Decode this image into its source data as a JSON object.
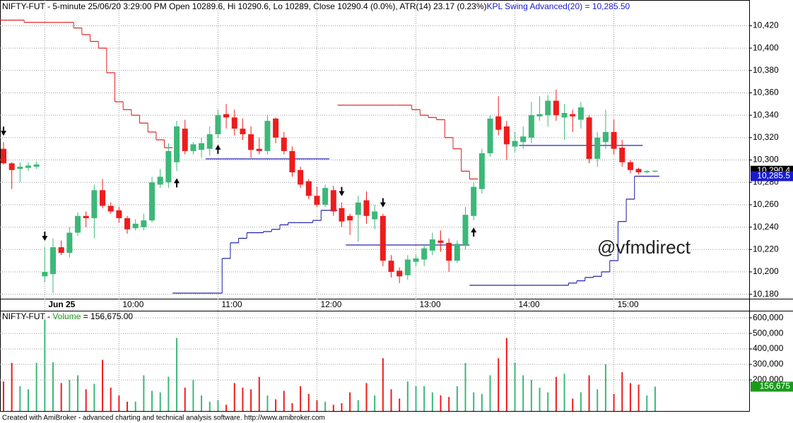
{
  "chart_data": [
    {
      "type": "candlestick",
      "title": "NIFTY-FUT - 5-minute 25/06/20 3:29:00 PM Open 10289.6, Hi 10290.6, Lo 10289, Close 10290.4 (0.0%), ATR(14) 23.17  (0.23%)",
      "subtitle": "KPL Swing Advanced(20) = 10,285.50",
      "categories": [
        null,
        null,
        null,
        null,
        null,
        "Jun 25",
        null,
        null,
        null,
        null,
        null,
        null,
        null,
        null,
        "10:00",
        null,
        null,
        null,
        null,
        null,
        null,
        null,
        null,
        null,
        null,
        null,
        "11:00",
        null,
        null,
        null,
        null,
        null,
        null,
        null,
        null,
        null,
        null,
        null,
        "12:00",
        null,
        null,
        null,
        null,
        null,
        null,
        null,
        null,
        null,
        null,
        null,
        "13:00",
        null,
        null,
        null,
        null,
        null,
        null,
        null,
        null,
        null,
        null,
        null,
        "14:00",
        null,
        null,
        null,
        null,
        null,
        null,
        null,
        null,
        null,
        null,
        null,
        "15:00",
        null,
        null,
        null,
        null,
        null
      ],
      "open": [
        10310,
        10297,
        10292,
        10293,
        10294,
        10196,
        10198,
        10222,
        10217,
        10235,
        10250,
        10248,
        10273,
        10259,
        10255,
        10248,
        10239,
        10240,
        10246,
        10278,
        10280,
        10298,
        10328,
        10308,
        10309,
        10310,
        10323,
        10341,
        10338,
        10328,
        10323,
        10310,
        10308,
        10337,
        10320,
        10308,
        10291,
        10281,
        10268,
        10260,
        10273,
        10257,
        10250,
        10251,
        10264,
        10247,
        10250,
        10210,
        10201,
        10197,
        10209,
        10211,
        10219,
        10228,
        10226,
        10210,
        10224,
        10250,
        10274,
        10306,
        10339,
        10330,
        10312,
        10316,
        10320,
        10339,
        10340,
        10353,
        10338,
        10341,
        10336,
        10338,
        10301,
        10316,
        10325,
        10311,
        10298,
        10292,
        10289,
        10289.6
      ],
      "high": [
        10316,
        10298,
        10298,
        10298,
        10299,
        10222,
        10230,
        10228,
        10240,
        10253,
        10254,
        10278,
        10283,
        10262,
        10258,
        10250,
        10247,
        10252,
        10285,
        10292,
        10315,
        10335,
        10336,
        10316,
        10320,
        10330,
        10345,
        10350,
        10345,
        10337,
        10330,
        10320,
        10340,
        10338,
        10325,
        10312,
        10294,
        10283,
        10276,
        10278,
        10277,
        10262,
        10252,
        10268,
        10272,
        10260,
        10252,
        10215,
        10204,
        10215,
        10215,
        10225,
        10235,
        10237,
        10230,
        10228,
        10258,
        10280,
        10310,
        10340,
        10357,
        10335,
        10325,
        10330,
        10352,
        10357,
        10358,
        10363,
        10350,
        10345,
        10352,
        10340,
        10325,
        10345,
        10336,
        10318,
        10300,
        10293,
        10291,
        10290.6
      ],
      "low": [
        10296,
        10274,
        10280,
        10290,
        10292,
        10191,
        10181,
        10215,
        10213,
        10232,
        10240,
        10230,
        10257,
        10252,
        10244,
        10234,
        10237,
        10237,
        10244,
        10275,
        10275,
        10290,
        10305,
        10305,
        10302,
        10304,
        10320,
        10328,
        10322,
        10318,
        10302,
        10305,
        10305,
        10315,
        10305,
        10285,
        10275,
        10265,
        10258,
        10258,
        10250,
        10240,
        10233,
        10227,
        10243,
        10238,
        10205,
        10195,
        10190,
        10193,
        10205,
        10205,
        10215,
        10218,
        10200,
        10208,
        10220,
        10246,
        10270,
        10303,
        10322,
        10300,
        10307,
        10310,
        10315,
        10335,
        10330,
        10335,
        10318,
        10325,
        10328,
        10297,
        10294,
        10310,
        10305,
        10294,
        10288,
        10287,
        10288,
        10289
      ],
      "close": [
        10297,
        10291,
        10294,
        10295,
        10296,
        10200,
        10222,
        10217,
        10235,
        10250,
        10248,
        10273,
        10259,
        10254,
        10248,
        10238,
        10243,
        10246,
        10280,
        10285,
        10308,
        10330,
        10308,
        10314,
        10315,
        10323,
        10340,
        10338,
        10328,
        10323,
        10309,
        10308,
        10335,
        10320,
        10308,
        10289,
        10278,
        10268,
        10260,
        10275,
        10254,
        10245,
        10246,
        10262,
        10250,
        10254,
        10210,
        10200,
        10196,
        10211,
        10212,
        10221,
        10229,
        10226,
        10210,
        10225,
        10251,
        10276,
        10306,
        10337,
        10327,
        10314,
        10317,
        10321,
        10340,
        10341,
        10353,
        10340,
        10342,
        10339,
        10347,
        10301,
        10320,
        10325,
        10310,
        10298,
        10291,
        10289,
        10290,
        10290.4
      ],
      "up_color": "#3cb878",
      "down_color": "#ee1c1c",
      "swing_upper": {
        "color": "#dd2020",
        "values": [
          10425,
          10425,
          10425,
          10423,
          10423,
          10423,
          10423,
          10423,
          10423,
          10418,
          10412,
          10406,
          10400,
          10378,
          10352,
          10345,
          10340,
          10333,
          10325,
          10318,
          10311,
          null,
          null,
          null,
          null,
          null,
          null,
          null,
          null,
          null,
          null,
          null,
          null,
          null,
          null,
          null,
          null,
          null,
          null,
          null,
          null,
          10349,
          10349,
          10349,
          10349,
          10349,
          10349,
          10349,
          10349,
          10349,
          10345,
          10340,
          10338,
          10336,
          10320,
          10310,
          10290,
          10283,
          null,
          null,
          null,
          null,
          null,
          null,
          null,
          null,
          null,
          null,
          null,
          null,
          null,
          null,
          null,
          null,
          null,
          null,
          null,
          null,
          null,
          null
        ]
      },
      "swing_lower": {
        "color": "#1a1aa6",
        "values": [
          null,
          null,
          null,
          null,
          null,
          null,
          null,
          null,
          null,
          null,
          null,
          null,
          null,
          null,
          null,
          null,
          null,
          null,
          null,
          null,
          null,
          10181,
          10181,
          10181,
          10181,
          10181,
          10181,
          10212,
          10226,
          10230,
          10235,
          10235,
          10236,
          10238,
          10242,
          10244,
          10244,
          10244,
          10246,
          10255,
          10255,
          null,
          null,
          null,
          null,
          null,
          null,
          null,
          null,
          null,
          null,
          null,
          null,
          null,
          null,
          null,
          null,
          10188,
          10188,
          10188,
          10188,
          10188,
          10188,
          10188,
          10188,
          10188,
          10188,
          10188,
          10188,
          10190,
          10192,
          10195,
          10196,
          10200,
          10210,
          10245,
          10265,
          10285.5,
          10285.5,
          10285.5
        ]
      },
      "swing_levels": {
        "color": "#1a1aa6",
        "values": [
          null,
          null,
          null,
          null,
          null,
          null,
          null,
          null,
          null,
          null,
          null,
          null,
          null,
          null,
          null,
          null,
          null,
          null,
          null,
          null,
          null,
          null,
          null,
          null,
          null,
          10301,
          10301,
          10301,
          10301,
          10301,
          10301,
          10301,
          10301,
          10301,
          10301,
          10301,
          10301,
          10301,
          10301,
          10301,
          null,
          null,
          10224,
          10224,
          10224,
          10224,
          10224,
          10224,
          10224,
          10224,
          10224,
          10224,
          10224,
          10224,
          10224,
          10224,
          10224,
          null,
          null,
          null,
          null,
          null,
          null,
          10313,
          10313,
          10313,
          10313,
          10313,
          10313,
          10313,
          10313,
          10313,
          10313,
          10313,
          10313,
          10313,
          10313,
          10313,
          null,
          null
        ]
      },
      "buy_signals": [
        21,
        26,
        57
      ],
      "sell_signals": [
        0,
        5,
        41,
        46
      ],
      "price_badge": {
        "value": 10290.4,
        "label": "10,290.4"
      },
      "swing_badge": {
        "value": 10285.5,
        "label": "10,285.5"
      },
      "ylim": [
        10176,
        10443
      ],
      "yticks": [
        {
          "value": 10180,
          "label": "10,180"
        },
        {
          "value": 10200,
          "label": "10,200"
        },
        {
          "value": 10220,
          "label": "10,220"
        },
        {
          "value": 10240,
          "label": "10,240"
        },
        {
          "value": 10260,
          "label": "10,260"
        },
        {
          "value": 10280,
          "label": "10,280"
        },
        {
          "value": 10300,
          "label": "10,300"
        },
        {
          "value": 10320,
          "label": "10,320"
        },
        {
          "value": 10340,
          "label": "10,340"
        },
        {
          "value": 10360,
          "label": "10,360"
        },
        {
          "value": 10380,
          "label": "10,380"
        },
        {
          "value": 10400,
          "label": "10,400"
        },
        {
          "value": 10420,
          "label": "10,420"
        }
      ],
      "grid": true
    },
    {
      "type": "bar",
      "title": "NIFTY-FUT - ",
      "series": [
        {
          "name": "Volume",
          "color": "#1a9c1a",
          "values": [
            190000,
            310000,
            160000,
            140000,
            310000,
            590000,
            315000,
            180000,
            200000,
            230000,
            140000,
            175000,
            330000,
            150000,
            100000,
            60000,
            60000,
            230000,
            130000,
            120000,
            220000,
            470000,
            150000,
            200000,
            100000,
            60000,
            70000,
            40000,
            180000,
            150000,
            140000,
            220000,
            100000,
            75000,
            130000,
            50000,
            160000,
            110000,
            70000,
            60000,
            40000,
            50000,
            120000,
            70000,
            180000,
            100000,
            340000,
            140000,
            80000,
            190000,
            160000,
            160000,
            120000,
            100000,
            90000,
            160000,
            310000,
            120000,
            110000,
            230000,
            340000,
            470000,
            310000,
            230000,
            200000,
            150000,
            120000,
            220000,
            240000,
            80000,
            120000,
            230000,
            140000,
            300000,
            110000,
            250000,
            180000,
            170000,
            100000,
            156675
          ]
        }
      ],
      "value_text": " = 156,675.00",
      "badge": {
        "value": 156675,
        "label": "156,675"
      },
      "ylim": [
        0,
        646000
      ],
      "yticks": [
        {
          "value": 200000,
          "label": "200,000"
        },
        {
          "value": 300000,
          "label": "300,000"
        },
        {
          "value": 400000,
          "label": "400,000"
        },
        {
          "value": 500000,
          "label": "500,000"
        },
        {
          "value": 600000,
          "label": "600,000"
        }
      ],
      "grid": true
    }
  ],
  "watermark": "@vfmdirect",
  "footer": "Created with AmiBroker - advanced charting and technical analysis software. http://www.amibroker.com"
}
